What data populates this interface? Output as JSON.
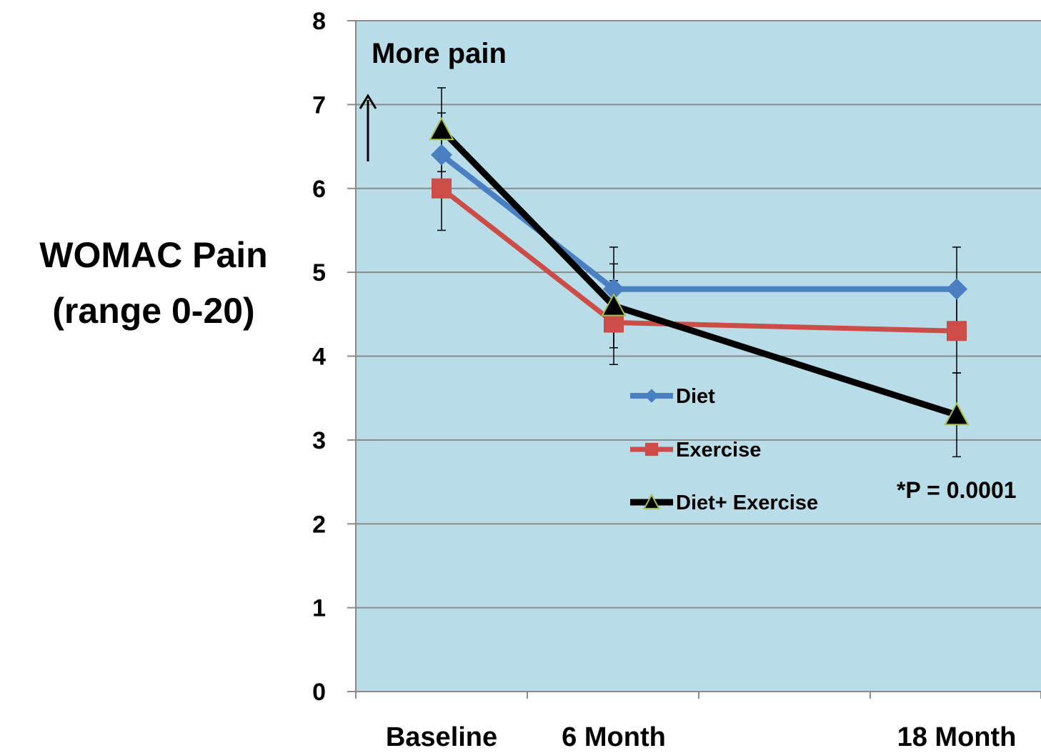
{
  "chart_data": {
    "type": "line",
    "title": "",
    "ylabel_line1": "WOMAC Pain",
    "ylabel_line2": "(range 0-20)",
    "xlabel": "",
    "categories": [
      "Baseline",
      "6 Month",
      "18 Month"
    ],
    "ylim": [
      0,
      8
    ],
    "yticks": [
      0,
      1,
      2,
      3,
      4,
      5,
      6,
      7,
      8
    ],
    "grid": true,
    "background": "#b8dde8",
    "legend_position": "center",
    "annotations": {
      "more_pain": "More pain",
      "pvalue": "*P = 0.0001"
    },
    "series": [
      {
        "name": "Diet",
        "color": "#4a7fc1",
        "marker": "diamond",
        "values": [
          6.4,
          4.8,
          4.8
        ],
        "err_high": [
          0.5,
          0.5,
          0.5
        ],
        "err_low": [
          0.2,
          0.7,
          0.5
        ]
      },
      {
        "name": "Exercise",
        "color": "#cc4c48",
        "marker": "square",
        "values": [
          6.0,
          4.4,
          4.3
        ],
        "err_high": [
          0.2,
          0.5,
          0.5
        ],
        "err_low": [
          0.5,
          0.5,
          0.5
        ]
      },
      {
        "name": "Diet+ Exercise",
        "color": "#000000",
        "marker": "triangle",
        "values": [
          6.7,
          4.6,
          3.3
        ],
        "err_high": [
          0.5,
          0.5,
          0.5
        ],
        "err_low": [
          0.5,
          0.5,
          0.5
        ]
      }
    ]
  }
}
